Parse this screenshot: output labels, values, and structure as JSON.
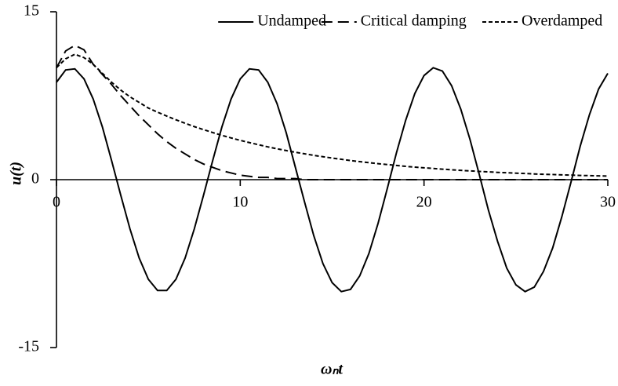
{
  "chart_data": {
    "type": "line",
    "xlabel": "ωₙt",
    "ylabel": "u(t)",
    "x": [
      0,
      0.5,
      1,
      1.5,
      2,
      2.5,
      3,
      3.5,
      4,
      4.5,
      5,
      5.5,
      6,
      6.5,
      7,
      7.5,
      8,
      8.5,
      9,
      9.5,
      10,
      10.5,
      11,
      11.5,
      12,
      12.5,
      13,
      13.5,
      14,
      14.5,
      15,
      15.5,
      16,
      16.5,
      17,
      17.5,
      18,
      18.5,
      19,
      19.5,
      20,
      20.5,
      21,
      21.5,
      22,
      22.5,
      23,
      23.5,
      24,
      24.5,
      25,
      25.5,
      26,
      26.5,
      27,
      27.5,
      28,
      28.5,
      29,
      29.5,
      30
    ],
    "series": [
      {
        "name": "Undamped",
        "color": "#000000",
        "dash": "solid",
        "values": [
          8.7,
          9.8,
          9.9,
          9.0,
          7.2,
          4.7,
          1.7,
          -1.4,
          -4.4,
          -7.0,
          -8.9,
          -9.9,
          -9.9,
          -8.9,
          -7.0,
          -4.4,
          -1.4,
          1.7,
          4.7,
          7.2,
          9.0,
          9.9,
          9.8,
          8.7,
          6.8,
          4.2,
          1.1,
          -2.0,
          -5.0,
          -7.5,
          -9.2,
          -10.0,
          -9.8,
          -8.6,
          -6.6,
          -3.9,
          -0.8,
          2.4,
          5.3,
          7.7,
          9.3,
          10.0,
          9.7,
          8.4,
          6.3,
          3.6,
          0.5,
          -2.7,
          -5.5,
          -7.9,
          -9.4,
          -10.0,
          -9.6,
          -8.2,
          -6.1,
          -3.3,
          -0.2,
          3.0,
          5.8,
          8.1,
          9.5
        ]
      },
      {
        "name": "Critical damping",
        "color": "#000000",
        "dash": "dashed",
        "values": [
          10,
          11.5,
          12,
          11.6,
          10.3,
          9.4,
          8.5,
          7.5,
          6.6,
          5.7,
          4.9,
          4.1,
          3.4,
          2.8,
          2.3,
          1.8,
          1.4,
          1.1,
          0.8,
          0.6,
          0.4,
          0.3,
          0.2,
          0.2,
          0.1,
          0.1,
          0.1,
          0,
          0,
          0,
          0,
          0,
          0,
          0,
          0,
          0,
          0,
          0,
          0,
          0,
          0,
          0,
          0,
          0,
          0,
          0,
          0,
          0,
          0,
          0,
          0,
          0,
          0,
          0,
          0,
          0,
          0,
          0,
          0,
          0,
          0
        ]
      },
      {
        "name": "Overdamped",
        "color": "#000000",
        "dash": "dotted",
        "values": [
          10,
          10.8,
          11.2,
          10.9,
          10.3,
          9.5,
          8.7,
          8.0,
          7.4,
          6.9,
          6.4,
          6.03,
          5.68,
          5.35,
          5.04,
          4.74,
          4.47,
          4.21,
          3.96,
          3.73,
          3.51,
          3.31,
          3.12,
          2.93,
          2.76,
          2.6,
          2.45,
          2.31,
          2.17,
          2.05,
          1.93,
          1.82,
          1.71,
          1.61,
          1.52,
          1.43,
          1.35,
          1.27,
          1.19,
          1.12,
          1.06,
          1.0,
          0.94,
          0.88,
          0.83,
          0.78,
          0.74,
          0.7,
          0.65,
          0.62,
          0.58,
          0.55,
          0.51,
          0.48,
          0.46,
          0.43,
          0.41,
          0.38,
          0.36,
          0.34,
          0.32
        ]
      }
    ],
    "xlim": [
      0,
      30
    ],
    "xticks": [
      0,
      10,
      20,
      30
    ],
    "ylim": [
      -15,
      15
    ],
    "yticks": [
      -15,
      0,
      15
    ],
    "legend": "top-right"
  }
}
